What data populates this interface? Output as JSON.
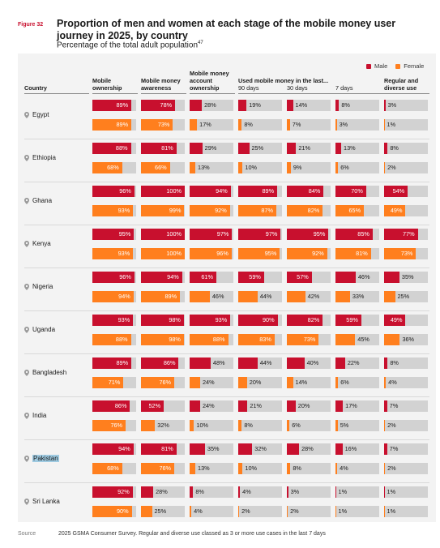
{
  "figure_label": "Figure 32",
  "title": "Proportion of men and women at each stage of the mobile money user journey in 2025, by country",
  "subtitle": "Percentage of the total adult population",
  "subtitle_sup": "47",
  "source_label": "Source",
  "source_text": "2025 GSMA Consumer Survey. Regular and diverse use classed as 3 or more use cases in the last 7 days",
  "colors": {
    "male": "#c8102e",
    "female": "#ff7f1e",
    "track": "#d2d2d2"
  },
  "chart_data": {
    "type": "bar",
    "title": "Proportion of men and women at each stage of the mobile money user journey in 2025, by country",
    "legend": {
      "position": "top-right",
      "entries": [
        "Male",
        "Female"
      ]
    },
    "country_header": "Country",
    "group_header": "Used mobile money in the last...",
    "columns": [
      "Mobile ownership",
      "Mobile money awareness",
      "Mobile money account ownership",
      "90 days",
      "30 days",
      "7 days",
      "Regular and diverse use"
    ],
    "unit": "%",
    "ylim": [
      0,
      100
    ],
    "countries": [
      {
        "name": "Egypt",
        "male": [
          89,
          78,
          28,
          19,
          14,
          8,
          3
        ],
        "female": [
          89,
          73,
          17,
          8,
          7,
          3,
          1
        ]
      },
      {
        "name": "Ethiopia",
        "male": [
          88,
          81,
          29,
          25,
          21,
          13,
          8
        ],
        "female": [
          68,
          66,
          13,
          10,
          9,
          6,
          2
        ]
      },
      {
        "name": "Ghana",
        "male": [
          96,
          100,
          94,
          89,
          84,
          70,
          54
        ],
        "female": [
          93,
          99,
          92,
          87,
          82,
          65,
          49
        ]
      },
      {
        "name": "Kenya",
        "male": [
          95,
          100,
          97,
          97,
          95,
          85,
          77
        ],
        "female": [
          93,
          100,
          96,
          95,
          92,
          81,
          73
        ]
      },
      {
        "name": "Nigeria",
        "male": [
          96,
          94,
          61,
          59,
          57,
          46,
          35
        ],
        "female": [
          94,
          89,
          46,
          44,
          42,
          33,
          25
        ]
      },
      {
        "name": "Uganda",
        "male": [
          93,
          98,
          93,
          90,
          82,
          59,
          49
        ],
        "female": [
          88,
          98,
          88,
          83,
          73,
          45,
          36
        ]
      },
      {
        "name": "Bangladesh",
        "male": [
          89,
          86,
          48,
          44,
          40,
          22,
          8
        ],
        "female": [
          71,
          76,
          24,
          20,
          14,
          6,
          4
        ]
      },
      {
        "name": "India",
        "male": [
          86,
          52,
          24,
          21,
          20,
          17,
          7
        ],
        "female": [
          76,
          32,
          10,
          8,
          6,
          5,
          2
        ]
      },
      {
        "name": "Pakistan",
        "male": [
          94,
          81,
          35,
          32,
          28,
          16,
          7
        ],
        "female": [
          68,
          76,
          13,
          10,
          8,
          4,
          2
        ]
      },
      {
        "name": "Sri Lanka",
        "male": [
          92,
          28,
          8,
          4,
          3,
          1,
          1
        ],
        "female": [
          90,
          25,
          4,
          2,
          2,
          1,
          1
        ]
      }
    ],
    "highlighted_country": "Pakistan"
  }
}
